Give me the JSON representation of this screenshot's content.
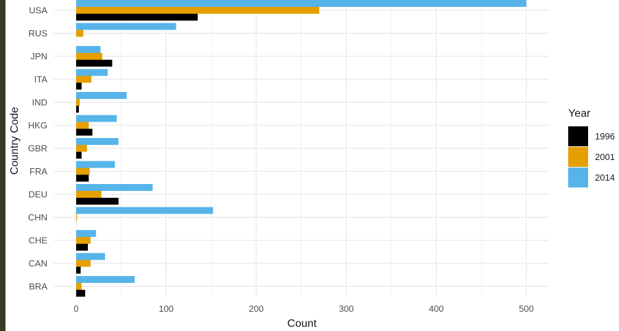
{
  "chart_data": {
    "type": "bar",
    "orientation": "horizontal",
    "title": "",
    "xlabel": "Count",
    "ylabel": "Country Code",
    "xlim": [
      -25,
      520
    ],
    "x_ticks": [
      0,
      100,
      200,
      300,
      400,
      500
    ],
    "grid": true,
    "legend_title": "Year",
    "legend_position": "right",
    "categories": [
      "USA",
      "RUS",
      "JPN",
      "ITA",
      "IND",
      "HKG",
      "GBR",
      "FRA",
      "DEU",
      "CHN",
      "CHE",
      "CAN",
      "BRA"
    ],
    "series": [
      {
        "name": "1996",
        "color": "#000000",
        "values": [
          135,
          null,
          40,
          6,
          3,
          18,
          6,
          14,
          47,
          null,
          13,
          5,
          10
        ]
      },
      {
        "name": "2001",
        "color": "#E69F00",
        "values": [
          270,
          8,
          29,
          17,
          4,
          14,
          12,
          15,
          28,
          1,
          16,
          16,
          6
        ]
      },
      {
        "name": "2014",
        "color": "#56B4E9",
        "values": [
          500,
          111,
          27,
          35,
          56,
          45,
          47,
          43,
          85,
          152,
          22,
          32,
          65
        ]
      }
    ]
  }
}
